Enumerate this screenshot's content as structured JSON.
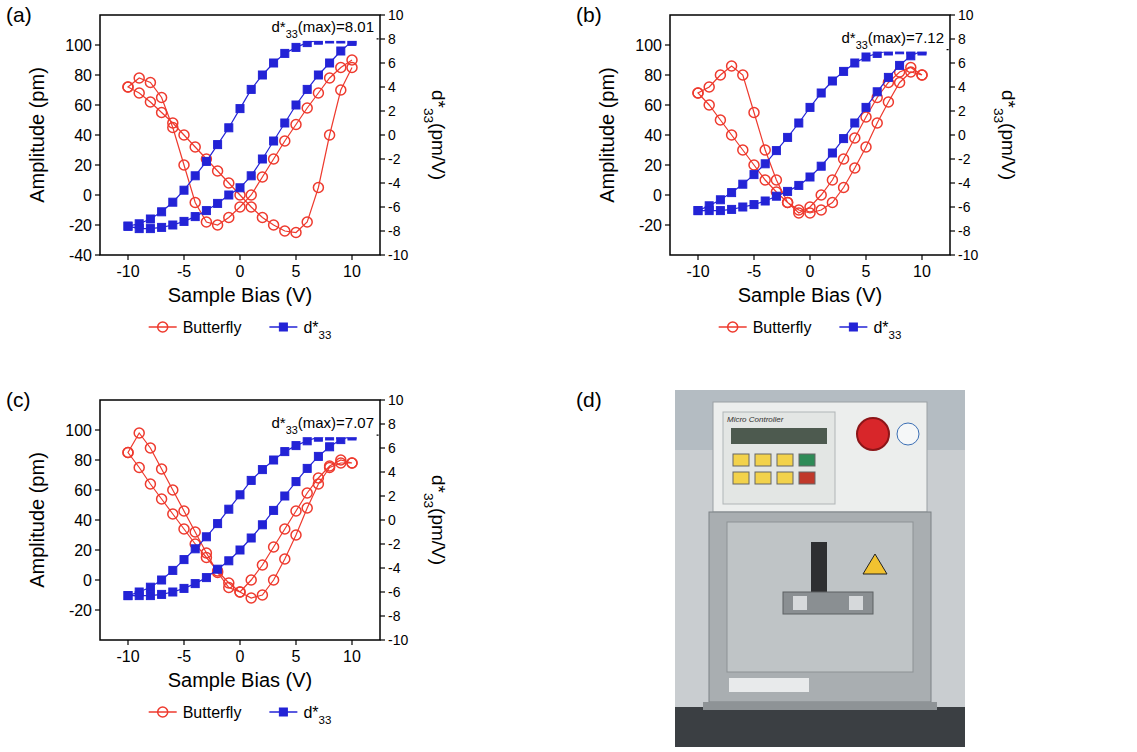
{
  "chart_data": [
    {
      "type": "scatter",
      "panel": "(a)",
      "x_label": "Sample Bias (V)",
      "y_label": "Amplitude (pm)",
      "y2_label": "d*33(pm/V)",
      "legend": "bottom",
      "xlim": [
        -12.5,
        12.5
      ],
      "xticks": [
        -10,
        -5,
        0,
        5,
        10
      ],
      "ylim": [
        -40,
        120
      ],
      "yticks": [
        -40,
        -20,
        0,
        20,
        40,
        60,
        80,
        100
      ],
      "y2lim": [
        -10,
        10
      ],
      "y2ticks": [
        -10,
        -8,
        -6,
        -4,
        -2,
        0,
        2,
        4,
        6,
        8,
        10
      ],
      "annotations": [
        {
          "text": "d*33(max)=8.01",
          "y2": 8.01
        }
      ],
      "x": [
        10,
        9,
        8,
        7,
        6,
        5,
        4,
        3,
        2,
        1,
        0,
        -1,
        -2,
        -3,
        -4,
        -5,
        -6,
        -7,
        -8,
        -9,
        -10,
        -10,
        -9,
        -8,
        -7,
        -6,
        -5,
        -4,
        -3,
        -2,
        -1,
        0,
        1,
        2,
        3,
        4,
        5,
        6,
        7,
        8,
        9,
        10
      ],
      "series": [
        {
          "name": "Butterfly",
          "color": "#ee3a2e",
          "marker": "circle",
          "line_style": "solid",
          "values": [
            90,
            85,
            78,
            68,
            58,
            47,
            36,
            24,
            12,
            0,
            -8,
            -15,
            -20,
            -18,
            -5,
            20,
            45,
            65,
            75,
            78,
            72,
            72,
            68,
            62,
            55,
            48,
            40,
            32,
            24,
            16,
            8,
            0,
            -8,
            -15,
            -20,
            -24,
            -25,
            -18,
            5,
            40,
            70,
            85
          ]
        },
        {
          "name": "d*33",
          "color": "#2323d6",
          "marker": "square",
          "line_style": "solid",
          "axis": "y2",
          "values": [
            7.9,
            8.0,
            8.0,
            7.9,
            7.7,
            7.3,
            6.8,
            6.0,
            5.0,
            3.8,
            2.2,
            0.6,
            -0.8,
            -2.2,
            -3.4,
            -4.6,
            -5.6,
            -6.4,
            -7.0,
            -7.4,
            -7.6,
            -7.6,
            -7.8,
            -7.8,
            -7.7,
            -7.5,
            -7.2,
            -6.8,
            -6.3,
            -5.7,
            -5.0,
            -4.4,
            -3.4,
            -2.0,
            -0.5,
            1.0,
            2.5,
            3.8,
            5.0,
            6.0,
            7.0,
            7.8
          ]
        }
      ]
    },
    {
      "type": "scatter",
      "panel": "(b)",
      "x_label": "Sample Bias (V)",
      "y_label": "Amplitude (pm)",
      "y2_label": "d*33(pm/V)",
      "legend": "bottom",
      "xlim": [
        -12.5,
        12.5
      ],
      "xticks": [
        -10,
        -5,
        0,
        5,
        10
      ],
      "ylim": [
        -40,
        120
      ],
      "yticks": [
        -20,
        0,
        20,
        40,
        60,
        80,
        100
      ],
      "y2lim": [
        -10,
        10
      ],
      "y2ticks": [
        -10,
        -8,
        -6,
        -4,
        -2,
        0,
        2,
        4,
        6,
        8,
        10
      ],
      "annotations": [
        {
          "text": "d*33(max)=7.12",
          "y2": 7.12
        }
      ],
      "x": [
        10,
        9,
        8,
        7,
        6,
        5,
        4,
        3,
        2,
        1,
        0,
        -1,
        -2,
        -3,
        -4,
        -5,
        -6,
        -7,
        -8,
        -9,
        -10,
        -10,
        -9,
        -8,
        -7,
        -6,
        -5,
        -4,
        -3,
        -2,
        -1,
        0,
        1,
        2,
        3,
        4,
        5,
        6,
        7,
        8,
        9,
        10
      ],
      "series": [
        {
          "name": "Butterfly",
          "color": "#ee3a2e",
          "marker": "circle",
          "line_style": "solid",
          "values": [
            80,
            85,
            82,
            75,
            65,
            52,
            38,
            24,
            10,
            0,
            -8,
            -12,
            -5,
            10,
            30,
            55,
            80,
            86,
            80,
            72,
            68,
            68,
            60,
            50,
            40,
            30,
            20,
            10,
            2,
            -5,
            -10,
            -12,
            -10,
            -5,
            5,
            18,
            32,
            48,
            62,
            75,
            82,
            80
          ]
        },
        {
          "name": "d*33",
          "color": "#2323d6",
          "marker": "square",
          "line_style": "solid",
          "axis": "y2",
          "values": [
            7.1,
            7.1,
            7.1,
            7.0,
            6.8,
            6.5,
            6.0,
            5.3,
            4.5,
            3.5,
            2.3,
            1.0,
            -0.2,
            -1.3,
            -2.4,
            -3.3,
            -4.1,
            -4.8,
            -5.4,
            -5.9,
            -6.3,
            -6.3,
            -6.3,
            -6.3,
            -6.2,
            -6.0,
            -5.8,
            -5.5,
            -5.1,
            -4.7,
            -4.2,
            -3.5,
            -2.6,
            -1.5,
            -0.3,
            1.0,
            2.3,
            3.6,
            4.8,
            5.8,
            6.6,
            7.0
          ]
        }
      ]
    },
    {
      "type": "scatter",
      "panel": "(c)",
      "x_label": "Sample Bias (V)",
      "y_label": "Amplitude (pm)",
      "y2_label": "d*33(pm/V)",
      "legend": "bottom",
      "xlim": [
        -12.5,
        12.5
      ],
      "xticks": [
        -10,
        -5,
        0,
        5,
        10
      ],
      "ylim": [
        -40,
        120
      ],
      "yticks": [
        -20,
        0,
        20,
        40,
        60,
        80,
        100
      ],
      "y2lim": [
        -10,
        10
      ],
      "y2ticks": [
        -10,
        -8,
        -6,
        -4,
        -2,
        0,
        2,
        4,
        6,
        8,
        10
      ],
      "annotations": [
        {
          "text": "d*33(max)=7.07",
          "y2": 7.07
        }
      ],
      "x": [
        10,
        9,
        8,
        7,
        6,
        5,
        4,
        3,
        2,
        1,
        0,
        -1,
        -2,
        -3,
        -4,
        -5,
        -6,
        -7,
        -8,
        -9,
        -10,
        -10,
        -9,
        -8,
        -7,
        -6,
        -5,
        -4,
        -3,
        -2,
        -1,
        0,
        1,
        2,
        3,
        4,
        5,
        6,
        7,
        8,
        9,
        10
      ],
      "series": [
        {
          "name": "Butterfly",
          "color": "#ee3a2e",
          "marker": "circle",
          "line_style": "solid",
          "values": [
            78,
            80,
            76,
            68,
            58,
            46,
            34,
            22,
            10,
            0,
            -8,
            -5,
            5,
            18,
            32,
            46,
            60,
            74,
            88,
            98,
            85,
            85,
            75,
            64,
            54,
            44,
            34,
            24,
            15,
            6,
            -2,
            -8,
            -12,
            -10,
            0,
            14,
            30,
            48,
            64,
            75,
            78,
            78
          ]
        },
        {
          "name": "d*33",
          "color": "#2323d6",
          "marker": "square",
          "line_style": "solid",
          "axis": "y2",
          "values": [
            7.1,
            7.1,
            7.0,
            6.9,
            6.6,
            6.2,
            5.7,
            5.0,
            4.2,
            3.3,
            2.1,
            0.9,
            -0.3,
            -1.4,
            -2.4,
            -3.3,
            -4.2,
            -5.0,
            -5.6,
            -6.0,
            -6.3,
            -6.3,
            -6.3,
            -6.3,
            -6.2,
            -6.0,
            -5.7,
            -5.3,
            -4.8,
            -4.1,
            -3.4,
            -2.5,
            -1.5,
            -0.4,
            0.8,
            2.0,
            3.2,
            4.3,
            5.3,
            6.1,
            6.7,
            7.0
          ]
        }
      ]
    }
  ],
  "photo": {
    "panel": "(d)",
    "texts": [
      "Micro Controller"
    ]
  }
}
